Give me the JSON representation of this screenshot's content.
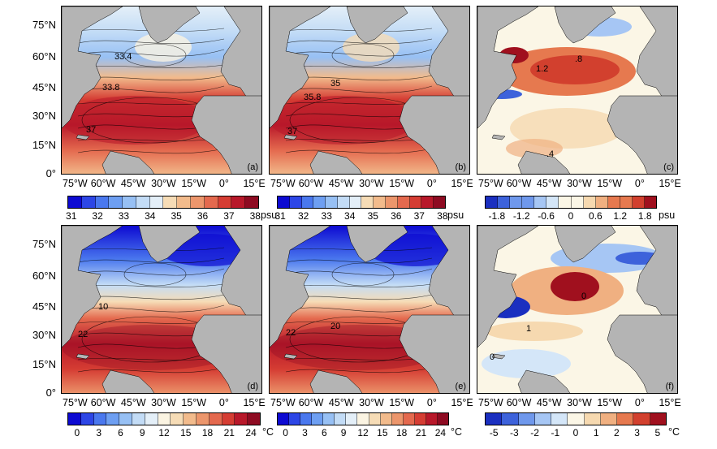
{
  "lat_labels": [
    "75°N",
    "60°N",
    "45°N",
    "30°N",
    "15°N",
    "0°"
  ],
  "lon_labels": [
    "75°W",
    "60°W",
    "45°W",
    "30°W",
    "15°W",
    "0°",
    "15°E"
  ],
  "panels": [
    {
      "id": "a",
      "label": "(a)",
      "contours": [
        "33.4",
        "33.8",
        "37"
      ]
    },
    {
      "id": "b",
      "label": "(b)",
      "contours": [
        "35",
        "35.8",
        "37"
      ]
    },
    {
      "id": "c",
      "label": "(c)",
      "contours": [
        "1.2",
        ".8",
        ".4"
      ]
    },
    {
      "id": "d",
      "label": "(d)",
      "contours": [
        "10",
        "22"
      ]
    },
    {
      "id": "e",
      "label": "(e)",
      "contours": [
        "22",
        "20"
      ]
    },
    {
      "id": "f",
      "label": "(f)",
      "contours": [
        "0",
        "1",
        "0"
      ]
    }
  ],
  "colorbars": {
    "salinity": {
      "ticks": [
        "31",
        "32",
        "33",
        "34",
        "35",
        "36",
        "37",
        "38"
      ],
      "unit": "psu"
    },
    "salinity_diff": {
      "ticks": [
        "-1.8",
        "-1.2",
        "-0.6",
        "0",
        "0.6",
        "1.2",
        "1.8"
      ],
      "unit": "psu"
    },
    "temperature": {
      "ticks": [
        "0",
        "3",
        "6",
        "9",
        "12",
        "15",
        "18",
        "21",
        "24"
      ],
      "unit": "°C"
    },
    "temperature_diff": {
      "ticks": [
        "-5",
        "-3",
        "-2",
        "-1",
        "0",
        "1",
        "2",
        "3",
        "5"
      ],
      "unit": "°C"
    }
  },
  "colors": {
    "land": "#b4b4b4",
    "seq": [
      "#0d0ad2",
      "#2d46e6",
      "#4a78ee",
      "#6e9ff2",
      "#97c0f4",
      "#c3dcf6",
      "#e4eff8",
      "#fbf4e2",
      "#f6dcb6",
      "#f2bb8c",
      "#ec966c",
      "#e4694e",
      "#d53d33",
      "#b8182a",
      "#8e0b22"
    ],
    "div": [
      "#1a2fc0",
      "#3d62db",
      "#6f98ec",
      "#a6c6f4",
      "#d4e6f8",
      "#fbf6e6",
      "#f6d9b0",
      "#f0b081",
      "#e6794f",
      "#d2402e",
      "#a0101e"
    ]
  }
}
